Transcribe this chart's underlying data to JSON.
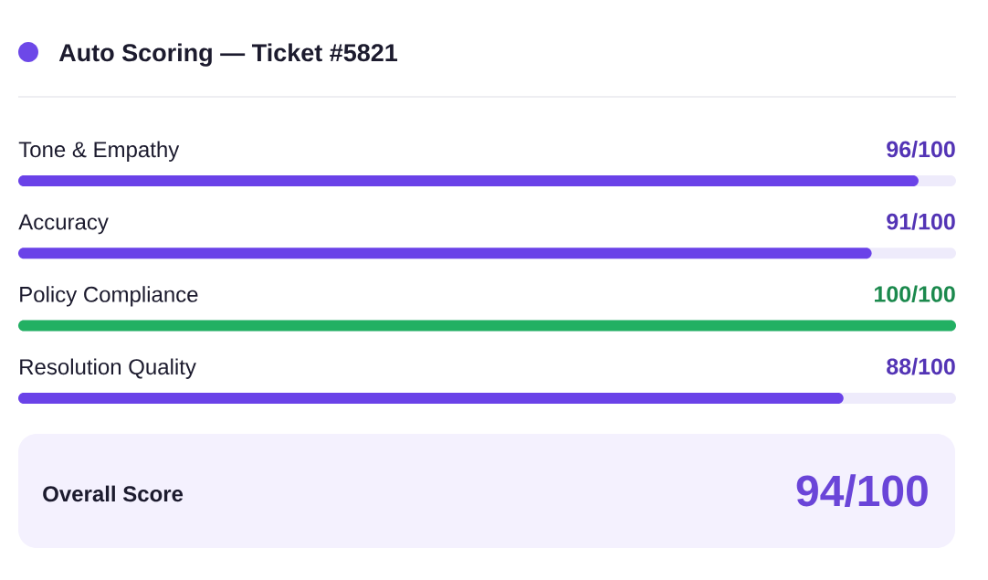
{
  "chart_data": {
    "type": "bar",
    "orientation": "horizontal",
    "title": "Auto Scoring — Ticket #5821",
    "categories": [
      "Tone & Empathy",
      "Accuracy",
      "Policy Compliance",
      "Resolution Quality"
    ],
    "values": [
      96,
      91,
      100,
      88
    ],
    "colors": [
      "#6a42e8",
      "#6a42e8",
      "#22b063",
      "#6a42e8"
    ],
    "value_labels": [
      "96/100",
      "91/100",
      "100/100",
      "88/100"
    ],
    "xlim": [
      0,
      100
    ],
    "tick_labels": "y",
    "annotations": [
      "Overall Score",
      "94/100"
    ]
  }
}
